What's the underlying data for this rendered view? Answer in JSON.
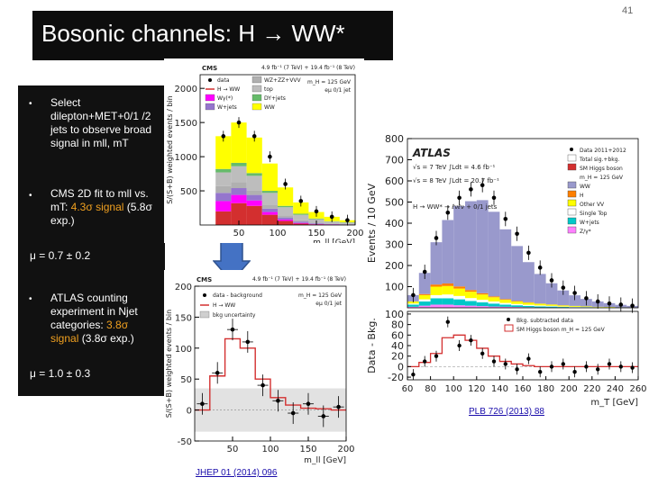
{
  "slide_number": "41",
  "title": "Bosonic channels:  H → WW*",
  "bullets": [
    {
      "text": "Select dilepton+MET+0/1 /2 jets to observe broad signal in mll, mT"
    },
    {
      "pre": "CMS 2D fit to mll vs. mT: ",
      "highlight": "4.3σ signal",
      "post": " (5.8σ exp.)"
    },
    {
      "pre": "ATLAS counting experiment in Njet categories: ",
      "highlight": "3.8σ signal",
      "post": " (3.8σ exp.)"
    }
  ],
  "mu_cms": "μ = 0.7 ± 0.2",
  "mu_atlas": "μ = 1.0 ± 0.3",
  "refs": {
    "cms": "JHEP 01 (2014) 096",
    "atlas": "PLB 726 (2013) 88"
  },
  "colors": {
    "title_bg": "#0d0d0d",
    "panel_bg": "#111111",
    "highlight": "#f0a020",
    "arrow": "#4472c4"
  },
  "chart_data": [
    {
      "type": "bar",
      "id": "cms-mll",
      "header": "CMS",
      "lumi": "4.9 fb⁻¹ (7 TeV) + 19.4 fb⁻¹ (8 TeV)",
      "extra": [
        "m_H = 125 GeV",
        "eμ 0/1 jet"
      ],
      "ylabel": "S/(S+B) weighted events / bin",
      "xlabel": "m_ll [GeV]",
      "xlim": [
        0,
        200
      ],
      "ylim": [
        0,
        2200
      ],
      "xticks": [
        50,
        100,
        150,
        200
      ],
      "yticks": [
        500,
        1000,
        1500,
        2000
      ],
      "legend": [
        "data",
        "H → WW",
        "Wγ(*)",
        "W+jets",
        "WZ+ZZ+VVV",
        "top",
        "DY+jets",
        "WW"
      ],
      "bins": [
        10,
        30,
        50,
        70,
        90,
        110,
        130,
        150,
        170,
        190
      ],
      "stack": [
        {
          "name": "H → WW",
          "color": "#d32f2f",
          "values": [
            0,
            200,
            320,
            280,
            150,
            60,
            20,
            10,
            5,
            5
          ]
        },
        {
          "name": "Wγ(*)",
          "color": "#ff00ff",
          "values": [
            0,
            150,
            120,
            80,
            40,
            20,
            10,
            5,
            5,
            0
          ]
        },
        {
          "name": "W+jets",
          "color": "#9575cd",
          "values": [
            0,
            120,
            100,
            80,
            50,
            30,
            20,
            10,
            5,
            5
          ]
        },
        {
          "name": "WZ+ZZ+VVV",
          "color": "#b0b0b0",
          "values": [
            0,
            100,
            90,
            70,
            50,
            30,
            20,
            10,
            5,
            5
          ]
        },
        {
          "name": "top",
          "color": "#bdbdbd",
          "values": [
            0,
            200,
            230,
            210,
            180,
            120,
            80,
            50,
            30,
            20
          ]
        },
        {
          "name": "DY+jets",
          "color": "#66bb6a",
          "values": [
            0,
            50,
            50,
            40,
            30,
            20,
            15,
            10,
            5,
            5
          ]
        },
        {
          "name": "WW",
          "color": "#ffff00",
          "values": [
            0,
            480,
            590,
            520,
            400,
            270,
            165,
            95,
            65,
            30
          ]
        }
      ],
      "data": [
        0,
        1300,
        1500,
        1300,
        1000,
        600,
        350,
        200,
        120,
        70
      ]
    },
    {
      "type": "bar",
      "id": "cms-bkgsub",
      "header": "CMS",
      "lumi": "4.9 fb⁻¹ (7 TeV) + 19.4 fb⁻¹ (8 TeV)",
      "extra": [
        "m_H = 125 GeV",
        "eμ 0/1 jet"
      ],
      "ylabel": "S/(S+B) weighted events / bin",
      "xlabel": "m_ll [GeV]",
      "xlim": [
        0,
        200
      ],
      "ylim": [
        -50,
        200
      ],
      "xticks": [
        50,
        100,
        150,
        200
      ],
      "yticks": [
        -50,
        0,
        50,
        100,
        150,
        200
      ],
      "legend": [
        "data - background",
        "H → WW",
        "bkg uncertainty"
      ],
      "bins": [
        10,
        30,
        50,
        70,
        90,
        110,
        130,
        150,
        170,
        190
      ],
      "signal": [
        0,
        55,
        115,
        100,
        50,
        20,
        8,
        3,
        2,
        0
      ],
      "data": [
        10,
        60,
        130,
        110,
        40,
        15,
        -5,
        10,
        -10,
        5
      ]
    },
    {
      "type": "bar",
      "id": "atlas-mt",
      "header": "ATLAS",
      "lumi": [
        "√s = 7 TeV  ∫Ldt = 4.6 fb⁻¹",
        "√s = 8 TeV  ∫Ldt = 20.7 fb⁻¹"
      ],
      "channel": "H → WW* → ℓνℓν + 0/1 jets",
      "ylabel": "Events / 10 GeV",
      "ylabel_lower": "Data - Bkg.",
      "xlabel": "m_T [GeV]",
      "xlim": [
        60,
        260
      ],
      "ylim": [
        0,
        800
      ],
      "xticks": [
        60,
        80,
        100,
        120,
        140,
        160,
        180,
        200,
        220,
        240,
        260
      ],
      "yticks": [
        100,
        200,
        300,
        400,
        500,
        600,
        700,
        800
      ],
      "lower_yticks": [
        -20,
        0,
        20,
        40,
        60,
        80,
        100
      ],
      "legend": [
        "Data 2011+2012",
        "Total sig.+bkg.",
        "SM Higgs boson",
        "m_H = 125 GeV",
        "WW",
        "H",
        "Other VV",
        "Single Top",
        "W+jets",
        "Z/γ*"
      ],
      "lower_legend": [
        "Bkg. subtracted data",
        "SM Higgs boson m_H = 125 GeV"
      ],
      "bins": [
        65,
        75,
        85,
        95,
        105,
        115,
        125,
        135,
        145,
        155,
        165,
        175,
        185,
        195,
        205,
        215,
        225,
        235,
        245,
        255
      ],
      "stack": [
        {
          "name": "Z/γ*",
          "color": "#ff80ff",
          "values": [
            5,
            10,
            15,
            15,
            12,
            10,
            8,
            6,
            5,
            4,
            3,
            2,
            2,
            1,
            1,
            1,
            1,
            0,
            0,
            0
          ]
        },
        {
          "name": "W+jets",
          "color": "#00c8c8",
          "values": [
            10,
            20,
            30,
            30,
            28,
            22,
            18,
            14,
            10,
            8,
            6,
            5,
            4,
            3,
            2,
            2,
            1,
            1,
            1,
            0
          ]
        },
        {
          "name": "Single Top",
          "color": "#ffffff",
          "values": [
            5,
            10,
            15,
            18,
            16,
            14,
            12,
            10,
            8,
            6,
            5,
            4,
            3,
            2,
            2,
            1,
            1,
            1,
            0,
            0
          ]
        },
        {
          "name": "Other VV",
          "color": "#ffff00",
          "values": [
            10,
            20,
            40,
            40,
            35,
            30,
            25,
            20,
            15,
            12,
            10,
            8,
            6,
            5,
            4,
            3,
            2,
            2,
            1,
            1
          ]
        },
        {
          "name": "H",
          "color": "#ff7f00",
          "values": [
            0,
            5,
            10,
            12,
            10,
            8,
            6,
            4,
            3,
            2,
            2,
            1,
            1,
            1,
            0,
            0,
            0,
            0,
            0,
            0
          ]
        },
        {
          "name": "WW",
          "color": "#9999cc",
          "values": [
            30,
            100,
            200,
            300,
            380,
            420,
            440,
            400,
            330,
            260,
            190,
            140,
            100,
            70,
            50,
            35,
            25,
            18,
            12,
            8
          ]
        }
      ],
      "data": [
        60,
        170,
        330,
        450,
        520,
        560,
        580,
        520,
        420,
        350,
        260,
        190,
        130,
        95,
        70,
        45,
        30,
        20,
        15,
        10
      ],
      "lower_signal": [
        0,
        8,
        25,
        55,
        60,
        50,
        35,
        20,
        10,
        5,
        2,
        0,
        0,
        0,
        0,
        0,
        0,
        0,
        0,
        0
      ],
      "lower_data": [
        -15,
        10,
        20,
        85,
        40,
        50,
        25,
        10,
        5,
        -5,
        15,
        -10,
        0,
        5,
        -10,
        0,
        -5,
        5,
        0,
        -2
      ]
    }
  ]
}
